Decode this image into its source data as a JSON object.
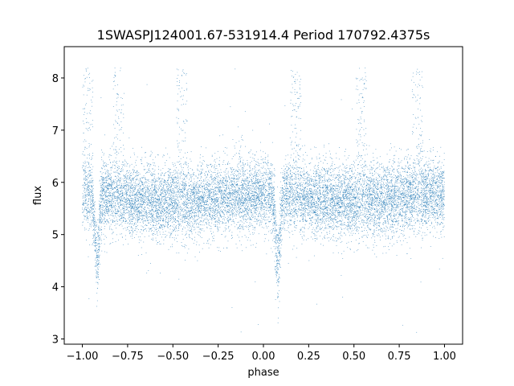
{
  "chart_data": {
    "type": "scatter",
    "title": "1SWASPJ124001.67-531914.4 Period 170792.4375s",
    "xlabel": "phase",
    "ylabel": "flux",
    "xlim": [
      -1.1,
      1.1
    ],
    "ylim": [
      2.9,
      8.6
    ],
    "xticks": [
      -1.0,
      -0.75,
      -0.5,
      -0.25,
      0.0,
      0.25,
      0.5,
      0.75,
      1.0
    ],
    "xtick_labels": [
      "−1.00",
      "−0.75",
      "−0.50",
      "−0.25",
      "0.00",
      "0.25",
      "0.50",
      "0.75",
      "1.00"
    ],
    "yticks": [
      3,
      4,
      5,
      6,
      7,
      8
    ],
    "ytick_labels": [
      "3",
      "4",
      "5",
      "6",
      "7",
      "8"
    ],
    "grid": false,
    "legend": "none",
    "marker_color": "#1f77b4",
    "series": [
      {
        "x_range": [
          -1.0,
          1.0
        ],
        "baseline_flux": 5.7,
        "scatter_sd": 0.35,
        "eclipses": [
          {
            "phase": -0.92,
            "min_flux": 4.4
          },
          {
            "phase": 0.08,
            "min_flux": 4.4
          }
        ],
        "flare_phases": [
          -0.97,
          -0.8,
          -0.45,
          0.18,
          0.54,
          0.85
        ],
        "flare_max_flux": 8.2,
        "point_count": 14000
      }
    ]
  }
}
